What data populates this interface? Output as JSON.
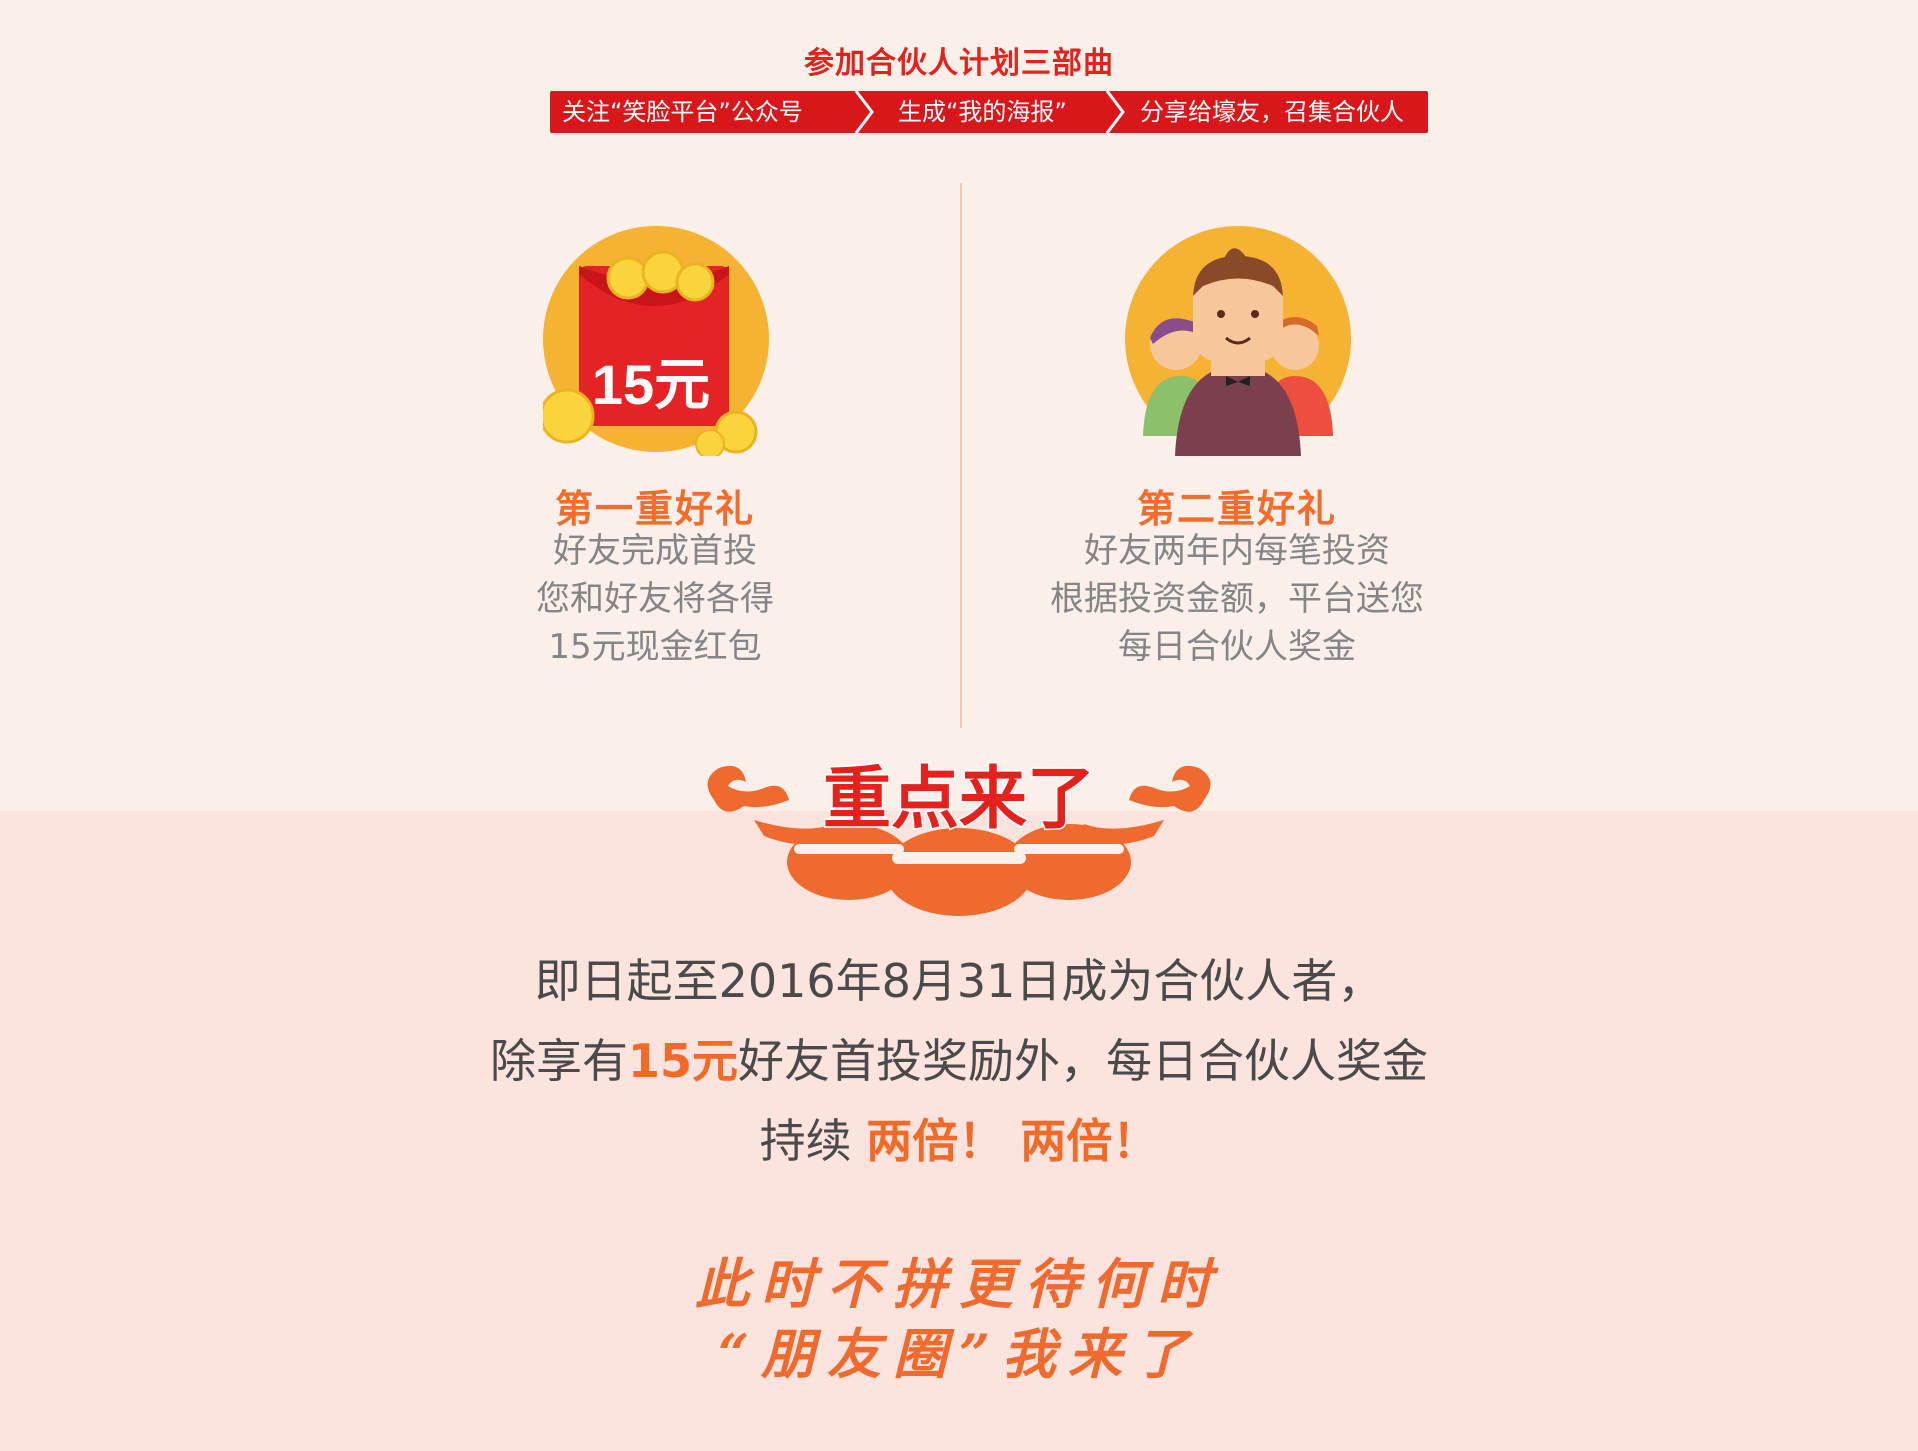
{
  "header": {
    "title": "参加合伙人计划三部曲",
    "steps": [
      "关注“笑脸平台”公众号",
      "生成“我的海报”",
      "分享给壕友，召集合伙人"
    ]
  },
  "gift1": {
    "icon_label": "15元",
    "title": "第一重好礼",
    "lines": [
      "好友完成首投",
      "您和好友将各得",
      "15元现金红包"
    ]
  },
  "gift2": {
    "title": "第二重好礼",
    "lines": [
      "好友两年内每笔投资",
      "根据投资金额，平台送您",
      "每日合伙人奖金"
    ]
  },
  "highlight": {
    "title": "重点来了"
  },
  "main": {
    "line1": "即日起至2016年8月31日成为合伙人者，",
    "line2_pre": "除享有",
    "line2_accent": "15元",
    "line2_post": "好友首投奖励外，每日合伙人奖金",
    "line3_pre": "持续 ",
    "line3_accent": "两倍！ 两倍！"
  },
  "slogan": {
    "line1": "此时不拼更待何时",
    "line2": "“朋友圈”我来了"
  },
  "colors": {
    "brand_red": "#d9161a",
    "accent_orange": "#f26c2c",
    "bg_top": "#fbefea",
    "bg_bottom": "#fce3dd"
  }
}
